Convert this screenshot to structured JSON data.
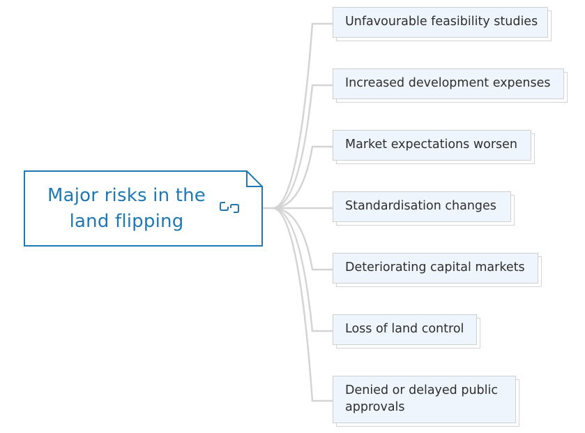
{
  "root": {
    "title": "Major risks in the land flipping",
    "icon": "link-icon"
  },
  "branches": [
    {
      "label": "Unfavourable feasibility studies"
    },
    {
      "label": "Increased development expenses"
    },
    {
      "label": "Market expectations worsen"
    },
    {
      "label": "Standardisation changes"
    },
    {
      "label": "Deteriorating capital markets"
    },
    {
      "label": "Loss of land control"
    },
    {
      "label": "Denied or delayed public approvals"
    }
  ],
  "colors": {
    "accent": "#1f78b4",
    "connector": "#d4d4d4",
    "card_fill": "#eef5fc",
    "card_border": "#cfcfcf",
    "text": "#2e2e2e"
  }
}
